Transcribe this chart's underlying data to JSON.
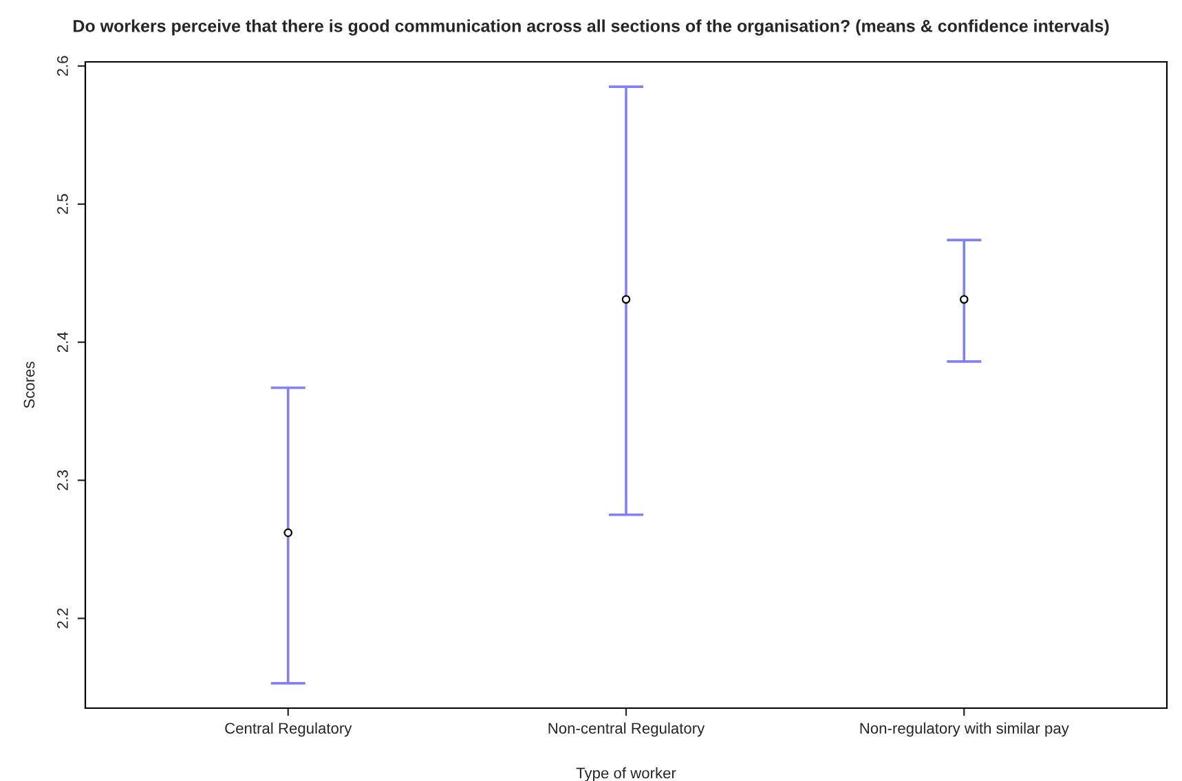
{
  "chart_data": {
    "type": "scatter",
    "title": "Do workers perceive that there is good communication across all sections of the organisation? (means & confidence intervals)",
    "xlabel": "Type of worker",
    "ylabel": "Scores",
    "categories": [
      "Central Regulatory",
      "Non-central Regulatory",
      "Non-regulatory with similar pay"
    ],
    "series": [
      {
        "color": "#000000",
        "values": [
          2.262,
          2.431,
          2.431
        ],
        "errors": [
          [
            2.153,
            2.367
          ],
          [
            2.275,
            2.585
          ],
          [
            2.386,
            2.474
          ]
        ]
      }
    ],
    "ylim": [
      2.135,
      2.603
    ],
    "yticks": [
      2.2,
      2.3,
      2.4,
      2.5,
      2.6
    ],
    "marker": "circle",
    "grid": false
  }
}
